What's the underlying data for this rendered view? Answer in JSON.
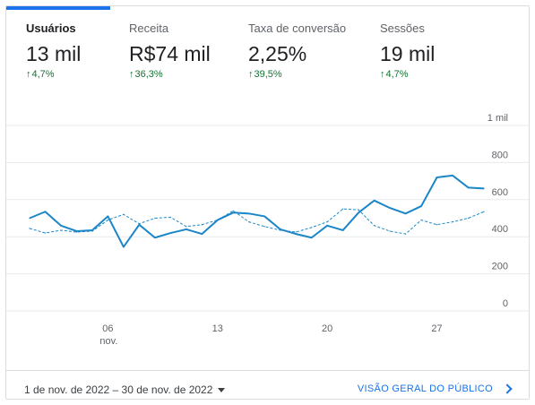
{
  "tabs": [
    {
      "label": "Usuários",
      "value": "13 mil",
      "delta": "4,7%",
      "active": true
    },
    {
      "label": "Receita",
      "value": "R$74 mil",
      "delta": "36,3%",
      "active": false
    },
    {
      "label": "Taxa de conversão",
      "value": "2,25%",
      "delta": "39,5%",
      "active": false
    },
    {
      "label": "Sessões",
      "value": "19 mil",
      "delta": "4,7%",
      "active": false
    }
  ],
  "colors": {
    "accent": "#1a73e8",
    "series_current": "#1a86c8",
    "positive": "#137333",
    "grid": "#e8eaed"
  },
  "icons": {
    "delta": "arrow-up-icon",
    "date": "caret-down-icon",
    "link": "chevron-right-icon"
  },
  "footer": {
    "date_range": "1 de nov. de 2022 – 30 de nov. de 2022",
    "audience_link": "VISÃO GERAL DO PÚBLICO"
  },
  "chart_data": {
    "type": "line",
    "x": [
      1,
      2,
      3,
      4,
      5,
      6,
      7,
      8,
      9,
      10,
      11,
      12,
      13,
      14,
      15,
      16,
      17,
      18,
      19,
      20,
      21,
      22,
      23,
      24,
      25,
      26,
      27,
      28,
      29,
      30
    ],
    "x_tick_labels": [
      {
        "x": 6,
        "label": "06",
        "sublabel": "nov."
      },
      {
        "x": 13,
        "label": "13",
        "sublabel": ""
      },
      {
        "x": 20,
        "label": "20",
        "sublabel": ""
      },
      {
        "x": 27,
        "label": "27",
        "sublabel": ""
      }
    ],
    "y_ticks": [
      {
        "value": 0,
        "label": "0"
      },
      {
        "value": 200,
        "label": "200"
      },
      {
        "value": 400,
        "label": "400"
      },
      {
        "value": 600,
        "label": "600"
      },
      {
        "value": 800,
        "label": "800"
      },
      {
        "value": 1000,
        "label": "1 mil"
      }
    ],
    "ylim": [
      0,
      1000
    ],
    "grid": true,
    "series": [
      {
        "style": "solid",
        "values": [
          500,
          535,
          460,
          430,
          435,
          510,
          345,
          465,
          395,
          420,
          440,
          415,
          490,
          530,
          525,
          510,
          440,
          415,
          395,
          460,
          435,
          530,
          595,
          555,
          525,
          565,
          720,
          730,
          665,
          660
        ]
      },
      {
        "style": "dashed",
        "values": [
          445,
          420,
          435,
          425,
          430,
          490,
          520,
          470,
          500,
          505,
          455,
          465,
          490,
          540,
          480,
          455,
          435,
          425,
          450,
          480,
          550,
          545,
          460,
          430,
          415,
          490,
          465,
          480,
          500,
          535
        ]
      }
    ]
  }
}
